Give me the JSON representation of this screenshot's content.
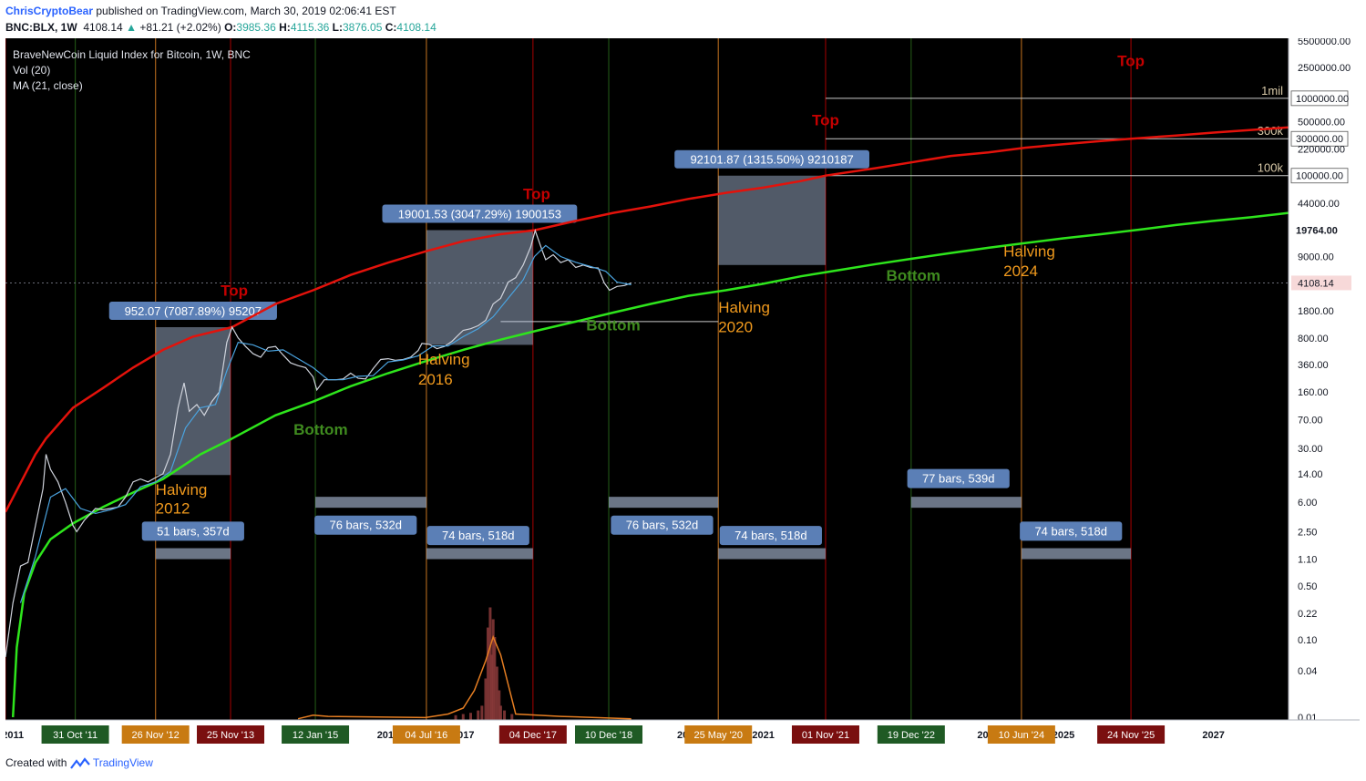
{
  "header": {
    "author": "ChrisCryptoBear",
    "published": "published on TradingView.com, March 30, 2019 02:06:41 EST",
    "symbol": "BNC:BLX, 1W",
    "last": "4108.14",
    "change": "+81.21 (+2.02%)",
    "o_label": "O:",
    "o": "3985.36",
    "h_label": "H:",
    "h": "4115.36",
    "l_label": "L:",
    "l": "3876.05",
    "c_label": "C:",
    "c": "4108.14"
  },
  "legend": {
    "title": "BraveNewCoin Liquid Index for Bitcoin, 1W, BNC",
    "vol": "Vol (20)",
    "ma": "MA (21, close)"
  },
  "footer": {
    "created": "Created with",
    "brand": "TradingView"
  },
  "colors": {
    "background": "#000000",
    "red_curve": "#e3120b",
    "green_curve": "#2ee51c",
    "top_text": "#c40000",
    "bottom_text": "#3f8b1f",
    "halving_text": "#f19a1d",
    "box_fill": "#b3c8e6",
    "label_box": "#5b7fb6",
    "ma_line": "#4aa3df",
    "volume_ma": "#e67e22",
    "candle_up": "#26a69a",
    "candle_down": "#ef5350"
  },
  "chart_data": {
    "type": "line",
    "title": "BraveNewCoin Liquid Index for Bitcoin, 1W, BNC",
    "y_scale": "log",
    "xlabel": "",
    "ylabel": "",
    "x_range": [
      2010.9,
      2028.0
    ],
    "y_range": [
      0.01,
      5500000
    ],
    "current_price": 4108.14,
    "y_ticks": [
      "5500000.00",
      "2500000.00",
      "1000000.00",
      "500000.00",
      "300000.00",
      "220000.00",
      "100000.00",
      "44000.00",
      "19764.00",
      "9000.00",
      "4108.14",
      "1800.00",
      "800.00",
      "360.00",
      "160.00",
      "70.00",
      "30.00",
      "14.00",
      "6.00",
      "2.50",
      "1.10",
      "0.50",
      "0.22",
      "0.10",
      "0.04",
      "0.01"
    ],
    "y_tick_values": [
      5500000,
      2500000,
      1000000,
      500000,
      300000,
      220000,
      100000,
      44000,
      19764,
      9000,
      4108.14,
      1800,
      800,
      360,
      160,
      70,
      30,
      14,
      6,
      2.5,
      1.1,
      0.5,
      0.22,
      0.1,
      0.04,
      0.01
    ],
    "x_ticks": [
      {
        "x": 2011.0,
        "label": "2011"
      },
      {
        "x": 2016.0,
        "label": "2016"
      },
      {
        "x": 2017.0,
        "label": "2017"
      },
      {
        "x": 2020.0,
        "label": "2020"
      },
      {
        "x": 2021.0,
        "label": "2021"
      },
      {
        "x": 2024.0,
        "label": "2024"
      },
      {
        "x": 2025.0,
        "label": "2025"
      },
      {
        "x": 2027.0,
        "label": "2027"
      }
    ],
    "markers": [
      {
        "x": 2011.83,
        "label": "31 Oct '11",
        "kind": "bottom"
      },
      {
        "x": 2012.9,
        "label": "26 Nov '12",
        "kind": "halving"
      },
      {
        "x": 2013.9,
        "label": "25 Nov '13",
        "kind": "top"
      },
      {
        "x": 2015.03,
        "label": "12 Jan '15",
        "kind": "bottom"
      },
      {
        "x": 2016.51,
        "label": "04 Jul '16",
        "kind": "halving"
      },
      {
        "x": 2017.93,
        "label": "04 Dec '17",
        "kind": "top"
      },
      {
        "x": 2018.94,
        "label": "10 Dec '18",
        "kind": "bottom"
      },
      {
        "x": 2020.4,
        "label": "25 May '20",
        "kind": "halving"
      },
      {
        "x": 2021.83,
        "label": "01 Nov '21",
        "kind": "top"
      },
      {
        "x": 2022.97,
        "label": "19 Dec '22",
        "kind": "bottom"
      },
      {
        "x": 2024.44,
        "label": "10 Jun '24",
        "kind": "halving"
      },
      {
        "x": 2025.9,
        "label": "24 Nov '25",
        "kind": "top"
      }
    ],
    "extra_vlines": [
      {
        "x": 2010.9,
        "kind": "top"
      }
    ],
    "price_series": [
      [
        2010.9,
        0.06
      ],
      [
        2011.0,
        0.3
      ],
      [
        2011.1,
        0.9
      ],
      [
        2011.2,
        1.0
      ],
      [
        2011.3,
        3
      ],
      [
        2011.4,
        9
      ],
      [
        2011.44,
        25
      ],
      [
        2011.5,
        16
      ],
      [
        2011.6,
        11
      ],
      [
        2011.7,
        6
      ],
      [
        2011.8,
        3
      ],
      [
        2011.85,
        2.5
      ],
      [
        2011.95,
        3.5
      ],
      [
        2012.1,
        5
      ],
      [
        2012.2,
        4.8
      ],
      [
        2012.3,
        5
      ],
      [
        2012.4,
        5.2
      ],
      [
        2012.5,
        7
      ],
      [
        2012.6,
        11
      ],
      [
        2012.7,
        12
      ],
      [
        2012.8,
        11
      ],
      [
        2012.9,
        12.5
      ],
      [
        2013.0,
        14
      ],
      [
        2013.1,
        25
      ],
      [
        2013.2,
        100
      ],
      [
        2013.28,
        210
      ],
      [
        2013.35,
        90
      ],
      [
        2013.45,
        110
      ],
      [
        2013.55,
        80
      ],
      [
        2013.65,
        120
      ],
      [
        2013.75,
        160
      ],
      [
        2013.85,
        700
      ],
      [
        2013.92,
        1100
      ],
      [
        2014.0,
        800
      ],
      [
        2014.1,
        620
      ],
      [
        2014.2,
        500
      ],
      [
        2014.3,
        450
      ],
      [
        2014.4,
        600
      ],
      [
        2014.5,
        620
      ],
      [
        2014.6,
        480
      ],
      [
        2014.7,
        380
      ],
      [
        2014.8,
        350
      ],
      [
        2014.9,
        330
      ],
      [
        2015.0,
        250
      ],
      [
        2015.05,
        170
      ],
      [
        2015.15,
        230
      ],
      [
        2015.3,
        230
      ],
      [
        2015.4,
        235
      ],
      [
        2015.5,
        280
      ],
      [
        2015.6,
        240
      ],
      [
        2015.7,
        235
      ],
      [
        2015.8,
        320
      ],
      [
        2015.9,
        420
      ],
      [
        2016.0,
        430
      ],
      [
        2016.1,
        410
      ],
      [
        2016.2,
        420
      ],
      [
        2016.3,
        450
      ],
      [
        2016.4,
        550
      ],
      [
        2016.45,
        680
      ],
      [
        2016.55,
        660
      ],
      [
        2016.65,
        580
      ],
      [
        2016.75,
        620
      ],
      [
        2016.85,
        720
      ],
      [
        2016.95,
        900
      ],
      [
        2017.0,
        1000
      ],
      [
        2017.1,
        1050
      ],
      [
        2017.2,
        1150
      ],
      [
        2017.3,
        1350
      ],
      [
        2017.4,
        2200
      ],
      [
        2017.5,
        2600
      ],
      [
        2017.6,
        4200
      ],
      [
        2017.7,
        4800
      ],
      [
        2017.8,
        7000
      ],
      [
        2017.9,
        12000
      ],
      [
        2017.96,
        19500
      ],
      [
        2018.05,
        11000
      ],
      [
        2018.1,
        8200
      ],
      [
        2018.2,
        9500
      ],
      [
        2018.3,
        7500
      ],
      [
        2018.4,
        8200
      ],
      [
        2018.5,
        6500
      ],
      [
        2018.6,
        7000
      ],
      [
        2018.7,
        6500
      ],
      [
        2018.8,
        6400
      ],
      [
        2018.88,
        4100
      ],
      [
        2018.95,
        3300
      ],
      [
        2019.05,
        3700
      ],
      [
        2019.15,
        3800
      ],
      [
        2019.24,
        4108
      ]
    ],
    "ma_series": [
      [
        2011.1,
        0.3
      ],
      [
        2011.3,
        1.2
      ],
      [
        2011.5,
        7
      ],
      [
        2011.7,
        9
      ],
      [
        2011.9,
        5
      ],
      [
        2012.1,
        4.3
      ],
      [
        2012.3,
        4.8
      ],
      [
        2012.5,
        5.6
      ],
      [
        2012.7,
        9.5
      ],
      [
        2012.9,
        11
      ],
      [
        2013.1,
        15
      ],
      [
        2013.3,
        55
      ],
      [
        2013.5,
        100
      ],
      [
        2013.7,
        110
      ],
      [
        2013.85,
        300
      ],
      [
        2014.0,
        700
      ],
      [
        2014.2,
        650
      ],
      [
        2014.4,
        540
      ],
      [
        2014.6,
        560
      ],
      [
        2014.8,
        430
      ],
      [
        2015.0,
        330
      ],
      [
        2015.2,
        230
      ],
      [
        2015.4,
        230
      ],
      [
        2015.6,
        255
      ],
      [
        2015.8,
        260
      ],
      [
        2016.0,
        390
      ],
      [
        2016.2,
        415
      ],
      [
        2016.4,
        470
      ],
      [
        2016.6,
        630
      ],
      [
        2016.8,
        630
      ],
      [
        2017.0,
        830
      ],
      [
        2017.2,
        1050
      ],
      [
        2017.4,
        1500
      ],
      [
        2017.6,
        2600
      ],
      [
        2017.8,
        4500
      ],
      [
        2017.95,
        9000
      ],
      [
        2018.1,
        12500
      ],
      [
        2018.3,
        9000
      ],
      [
        2018.5,
        7600
      ],
      [
        2018.7,
        6700
      ],
      [
        2018.9,
        5800
      ],
      [
        2019.05,
        4200
      ],
      [
        2019.24,
        3900
      ]
    ],
    "red_curve": [
      [
        2010.9,
        4.5
      ],
      [
        2011.3,
        25
      ],
      [
        2011.44,
        40
      ],
      [
        2011.8,
        100
      ],
      [
        2012.2,
        180
      ],
      [
        2012.6,
        330
      ],
      [
        2013.0,
        560
      ],
      [
        2013.4,
        830
      ],
      [
        2013.92,
        1100
      ],
      [
        2014.5,
        2200
      ],
      [
        2015.0,
        3300
      ],
      [
        2015.5,
        5200
      ],
      [
        2016.0,
        7500
      ],
      [
        2016.5,
        10500
      ],
      [
        2017.0,
        14200
      ],
      [
        2017.5,
        17500
      ],
      [
        2017.96,
        19764
      ],
      [
        2018.5,
        26000
      ],
      [
        2019.0,
        33000
      ],
      [
        2019.5,
        40000
      ],
      [
        2020.0,
        50000
      ],
      [
        2020.5,
        60000
      ],
      [
        2021.0,
        70000
      ],
      [
        2021.5,
        85000
      ],
      [
        2021.83,
        100000
      ],
      [
        2022.5,
        125000
      ],
      [
        2023.0,
        150000
      ],
      [
        2023.5,
        180000
      ],
      [
        2024.0,
        200000
      ],
      [
        2024.5,
        230000
      ],
      [
        2025.0,
        255000
      ],
      [
        2025.5,
        280000
      ],
      [
        2025.9,
        300000
      ],
      [
        2026.5,
        330000
      ],
      [
        2027.0,
        360000
      ],
      [
        2027.5,
        390000
      ],
      [
        2028.0,
        420000
      ]
    ],
    "green_curve": [
      [
        2011.0,
        0.01
      ],
      [
        2011.05,
        0.08
      ],
      [
        2011.15,
        0.4
      ],
      [
        2011.3,
        1.0
      ],
      [
        2011.5,
        2.0
      ],
      [
        2011.8,
        3.2
      ],
      [
        2012.2,
        5.2
      ],
      [
        2012.6,
        8.0
      ],
      [
        2013.0,
        12
      ],
      [
        2013.5,
        25
      ],
      [
        2013.92,
        40
      ],
      [
        2014.5,
        80
      ],
      [
        2015.0,
        120
      ],
      [
        2015.5,
        190
      ],
      [
        2016.0,
        280
      ],
      [
        2016.5,
        400
      ],
      [
        2017.0,
        560
      ],
      [
        2017.5,
        760
      ],
      [
        2018.0,
        1000
      ],
      [
        2018.5,
        1300
      ],
      [
        2019.0,
        1700
      ],
      [
        2019.5,
        2200
      ],
      [
        2020.0,
        2800
      ],
      [
        2020.5,
        3300
      ],
      [
        2021.0,
        4000
      ],
      [
        2021.5,
        5000
      ],
      [
        2022.0,
        6000
      ],
      [
        2022.5,
        7200
      ],
      [
        2023.0,
        8500
      ],
      [
        2023.5,
        10000
      ],
      [
        2024.0,
        11700
      ],
      [
        2024.5,
        13500
      ],
      [
        2025.0,
        15500
      ],
      [
        2025.5,
        17500
      ],
      [
        2026.0,
        20000
      ],
      [
        2026.5,
        23000
      ],
      [
        2027.0,
        26000
      ],
      [
        2027.5,
        29000
      ],
      [
        2028.0,
        33000
      ]
    ],
    "volume_bars": [
      [
        2016.9,
        0.04
      ],
      [
        2017.0,
        0.05
      ],
      [
        2017.1,
        0.06
      ],
      [
        2017.2,
        0.08
      ],
      [
        2017.25,
        0.12
      ],
      [
        2017.3,
        0.35
      ],
      [
        2017.33,
        0.78
      ],
      [
        2017.36,
        0.95
      ],
      [
        2017.38,
        0.55
      ],
      [
        2017.4,
        0.85
      ],
      [
        2017.42,
        0.7
      ],
      [
        2017.45,
        0.45
      ],
      [
        2017.48,
        0.25
      ],
      [
        2017.5,
        0.12
      ],
      [
        2017.55,
        0.08
      ],
      [
        2017.65,
        0.05
      ]
    ],
    "volume_ma": [
      [
        2014.8,
        0.01
      ],
      [
        2015.0,
        0.04
      ],
      [
        2015.2,
        0.03
      ],
      [
        2016.5,
        0.02
      ],
      [
        2016.8,
        0.05
      ],
      [
        2017.0,
        0.1
      ],
      [
        2017.15,
        0.25
      ],
      [
        2017.3,
        0.5
      ],
      [
        2017.4,
        0.7
      ],
      [
        2017.5,
        0.55
      ],
      [
        2017.62,
        0.25
      ],
      [
        2017.7,
        0.05
      ],
      [
        2018.3,
        0.03
      ],
      [
        2019.24,
        0.01
      ]
    ],
    "range_boxes": [
      {
        "x1": 2012.9,
        "x2": 2013.9,
        "y1": 13.5,
        "y2": 1100,
        "label": "952.07 (7087.89%) 95207"
      },
      {
        "x1": 2016.51,
        "x2": 2017.93,
        "y1": 650,
        "y2": 19764,
        "label": "19001.53 (3047.29%) 1900153"
      },
      {
        "x1": 2020.4,
        "x2": 2021.83,
        "y1": 7000,
        "y2": 100000,
        "label": "92101.87 (1315.50%) 9210187"
      }
    ],
    "bar_ranges": [
      {
        "x1": 2012.9,
        "x2": 2013.9,
        "y": 1.3,
        "label": "51 bars, 357d",
        "label_y": 2.5,
        "label_x": 2013.4
      },
      {
        "x1": 2015.03,
        "x2": 2016.51,
        "y": 6.0,
        "label": "76 bars, 532d",
        "label_y": 3.0,
        "label_x": 2015.7
      },
      {
        "x1": 2016.51,
        "x2": 2017.93,
        "y": 1.3,
        "label": "74 bars, 518d",
        "label_y": 2.2,
        "label_x": 2017.2
      },
      {
        "x1": 2018.94,
        "x2": 2020.4,
        "y": 6.0,
        "label": "76 bars, 532d",
        "label_y": 3.0,
        "label_x": 2019.65
      },
      {
        "x1": 2020.4,
        "x2": 2021.83,
        "y": 1.3,
        "label": "74 bars, 518d",
        "label_y": 2.2,
        "label_x": 2021.1
      },
      {
        "x1": 2022.97,
        "x2": 2024.44,
        "y": 6.0,
        "label": "77 bars, 539d",
        "label_y": 12.0,
        "label_x": 2023.6
      },
      {
        "x1": 2024.44,
        "x2": 2025.9,
        "y": 1.3,
        "label": "74 bars, 518d",
        "label_y": 2.5,
        "label_x": 2025.1
      }
    ],
    "h_levels": [
      {
        "value": 1000000,
        "x1": 2021.83,
        "label": "1mil"
      },
      {
        "value": 300000,
        "x1": 2021.83,
        "label": "300k"
      },
      {
        "value": 100000,
        "x1": 2021.83,
        "label": "100k"
      },
      {
        "value": 1300,
        "x1": 2017.5,
        "x2": 2020.4,
        "label": ""
      }
    ],
    "annotations": [
      {
        "text": "Top",
        "x": 2013.95,
        "y": 2800,
        "kind": "top"
      },
      {
        "text": "Top",
        "x": 2017.98,
        "y": 50000,
        "kind": "top"
      },
      {
        "text": "Top",
        "x": 2021.83,
        "y": 450000,
        "kind": "top"
      },
      {
        "text": "Top",
        "x": 2025.9,
        "y": 2600000,
        "kind": "top"
      },
      {
        "text": "Bottom",
        "x": 2015.1,
        "y": 45,
        "kind": "bottom"
      },
      {
        "text": "Bottom",
        "x": 2019.0,
        "y": 1000,
        "kind": "bottom"
      },
      {
        "text": "Bottom",
        "x": 2023.0,
        "y": 4400,
        "kind": "bottom"
      },
      {
        "text": "Halving",
        "x": 2012.9,
        "y": 7.5,
        "kind": "halving"
      },
      {
        "text": "2012",
        "x": 2012.9,
        "y": 4.3,
        "kind": "halving"
      },
      {
        "text": "Halving",
        "x": 2016.4,
        "y": 360,
        "kind": "halving"
      },
      {
        "text": "2016",
        "x": 2016.4,
        "y": 200,
        "kind": "halving"
      },
      {
        "text": "Halving",
        "x": 2020.4,
        "y": 1700,
        "kind": "halving"
      },
      {
        "text": "2020",
        "x": 2020.4,
        "y": 950,
        "kind": "halving"
      },
      {
        "text": "Halving",
        "x": 2024.2,
        "y": 9000,
        "kind": "halving"
      },
      {
        "text": "2024",
        "x": 2024.2,
        "y": 5000,
        "kind": "halving"
      }
    ]
  }
}
